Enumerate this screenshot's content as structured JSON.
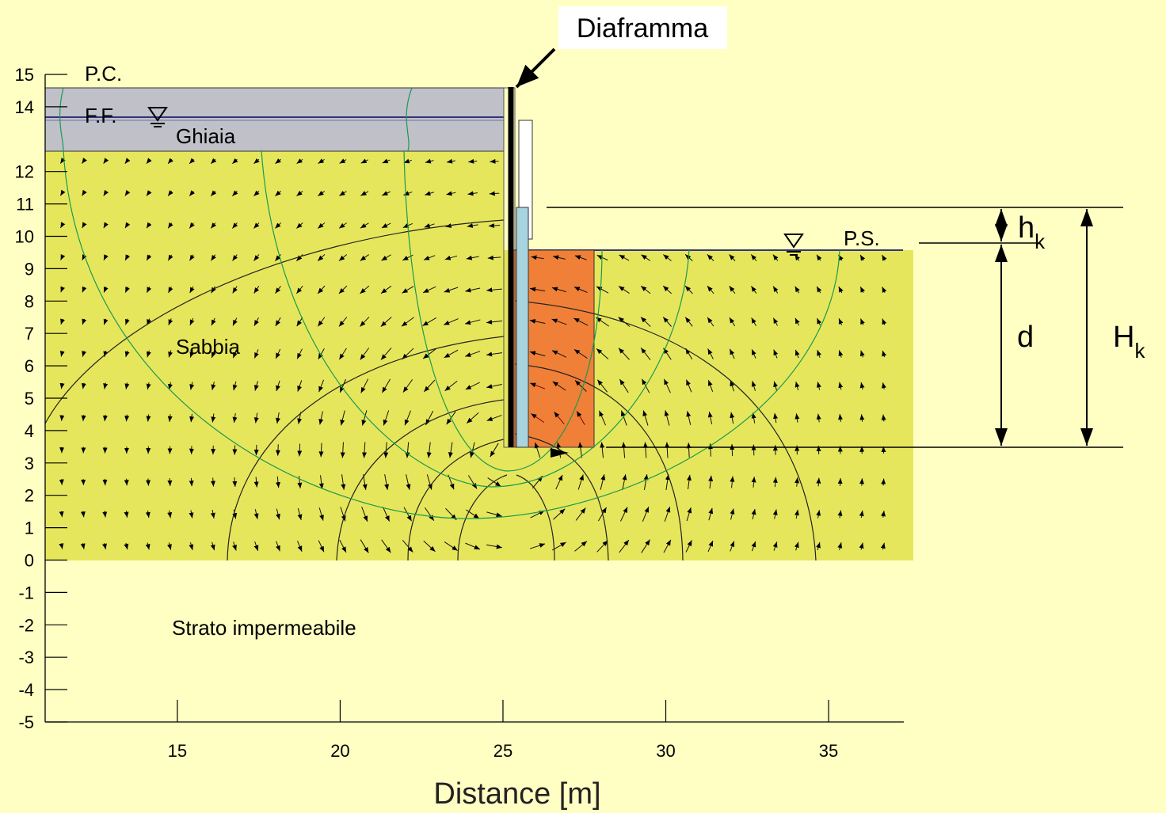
{
  "axes": {
    "x_label": "Distance [m]",
    "xlim": [
      10.94,
      37.31
    ],
    "ylim": [
      -5,
      15
    ],
    "xticks": [
      15,
      20,
      25,
      30,
      35
    ],
    "yticks": [
      15,
      14,
      12,
      11,
      10,
      9,
      8,
      7,
      6,
      5,
      4,
      3,
      2,
      1,
      0,
      -1,
      -2,
      -3,
      -4,
      -5
    ]
  },
  "labels": {
    "diaphragm": "Diaframma",
    "ground_level": "P.C.",
    "water_table_upstream": "F.F.",
    "gravel": "Ghiaia",
    "sand": "Sabbia",
    "impermeable": "Strato impermeabile",
    "water_table_downstream": "P.S.",
    "hk": {
      "base": "h",
      "sub": "k"
    },
    "d": "d",
    "Hk": {
      "base": "H",
      "sub": "k"
    }
  }
}
